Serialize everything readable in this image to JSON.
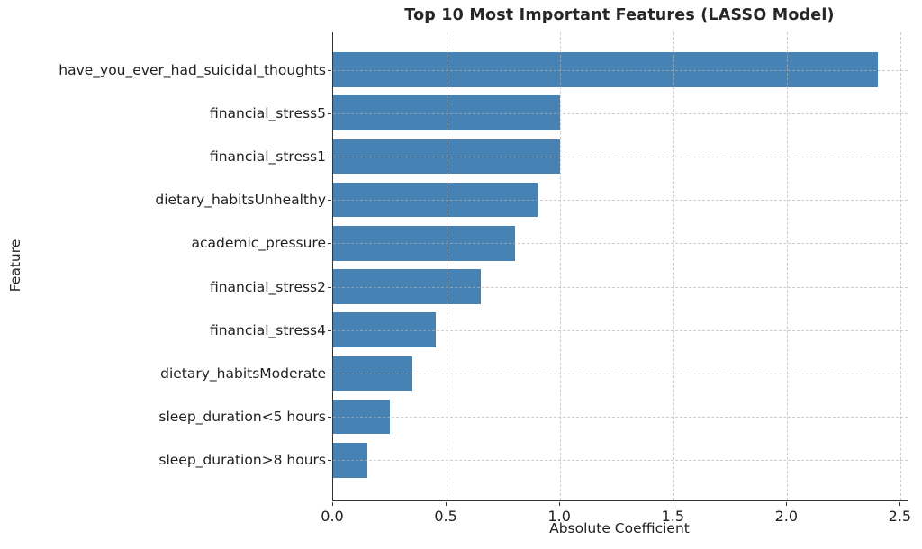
{
  "chart_data": {
    "type": "bar",
    "orientation": "horizontal",
    "title": "Top 10 Most Important Features (LASSO Model)",
    "xlabel": "Absolute Coefficient",
    "ylabel": "Feature",
    "categories": [
      "have_you_ever_had_suicidal_thoughts",
      "financial_stress5",
      "financial_stress1",
      "dietary_habitsUnhealthy",
      "academic_pressure",
      "financial_stress2",
      "financial_stress4",
      "dietary_habitsModerate",
      "sleep_duration<5 hours",
      "sleep_duration>8 hours"
    ],
    "values": [
      2.4,
      1.0,
      1.0,
      0.9,
      0.8,
      0.65,
      0.45,
      0.35,
      0.25,
      0.15
    ],
    "xticks": [
      0.0,
      0.5,
      1.0,
      1.5,
      2.0,
      2.5
    ],
    "xtick_labels": [
      "0.0",
      "0.5",
      "1.0",
      "1.5",
      "2.0",
      "2.5"
    ],
    "xlim": [
      0,
      2.53
    ],
    "grid": true,
    "legend": false,
    "bar_color": "#4683b4",
    "grid_color": "#b4b4b4",
    "spine_color": "#333333",
    "title_color": "#262626",
    "text_color": "#1f1f1f"
  }
}
